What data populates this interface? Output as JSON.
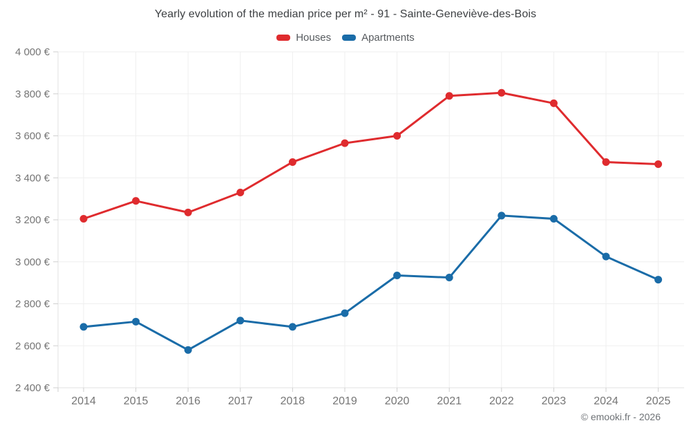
{
  "title": "Yearly evolution of the median price per m² - 91 - Sainte-Geneviève-des-Bois",
  "footer": {
    "credit": "© emooki.fr - 2026"
  },
  "colors": {
    "houses": "#df2b2e",
    "apartments": "#1a6ca8",
    "title_text": "#3d4043",
    "axis_text": "#757575",
    "grid": "#efefef",
    "axis_line": "#e0e0e0",
    "tick": "#cfcfcf",
    "background": "#ffffff"
  },
  "chart_data": {
    "type": "line",
    "title": "Yearly evolution of the median price per m² - 91 - Sainte-Geneviève-des-Bois",
    "xlabel": "",
    "ylabel": "",
    "categories": [
      "2014",
      "2015",
      "2016",
      "2017",
      "2018",
      "2019",
      "2020",
      "2021",
      "2022",
      "2023",
      "2024",
      "2025"
    ],
    "series": [
      {
        "name": "Houses",
        "color": "#df2b2e",
        "values": [
          3205,
          3290,
          3235,
          3330,
          3475,
          3565,
          3600,
          3790,
          3805,
          3755,
          3475,
          3465
        ]
      },
      {
        "name": "Apartments",
        "color": "#1a6ca8",
        "values": [
          2690,
          2715,
          2580,
          2720,
          2690,
          2755,
          2935,
          2925,
          3220,
          3205,
          3025,
          2915
        ]
      }
    ],
    "ylim": [
      2400,
      4000
    ],
    "y_ticks": [
      {
        "value": 4000,
        "label": "4 000 €"
      },
      {
        "value": 3800,
        "label": "3 800 €"
      },
      {
        "value": 3600,
        "label": "3 600 €"
      },
      {
        "value": 3400,
        "label": "3 400 €"
      },
      {
        "value": 3200,
        "label": "3 200 €"
      },
      {
        "value": 3000,
        "label": "3 000 €"
      },
      {
        "value": 2800,
        "label": "2 800 €"
      },
      {
        "value": 2600,
        "label": "2 600 €"
      },
      {
        "value": 2400,
        "label": "2 400 €"
      }
    ],
    "grid": true,
    "legend_position": "top",
    "currency_suffix": "€"
  }
}
